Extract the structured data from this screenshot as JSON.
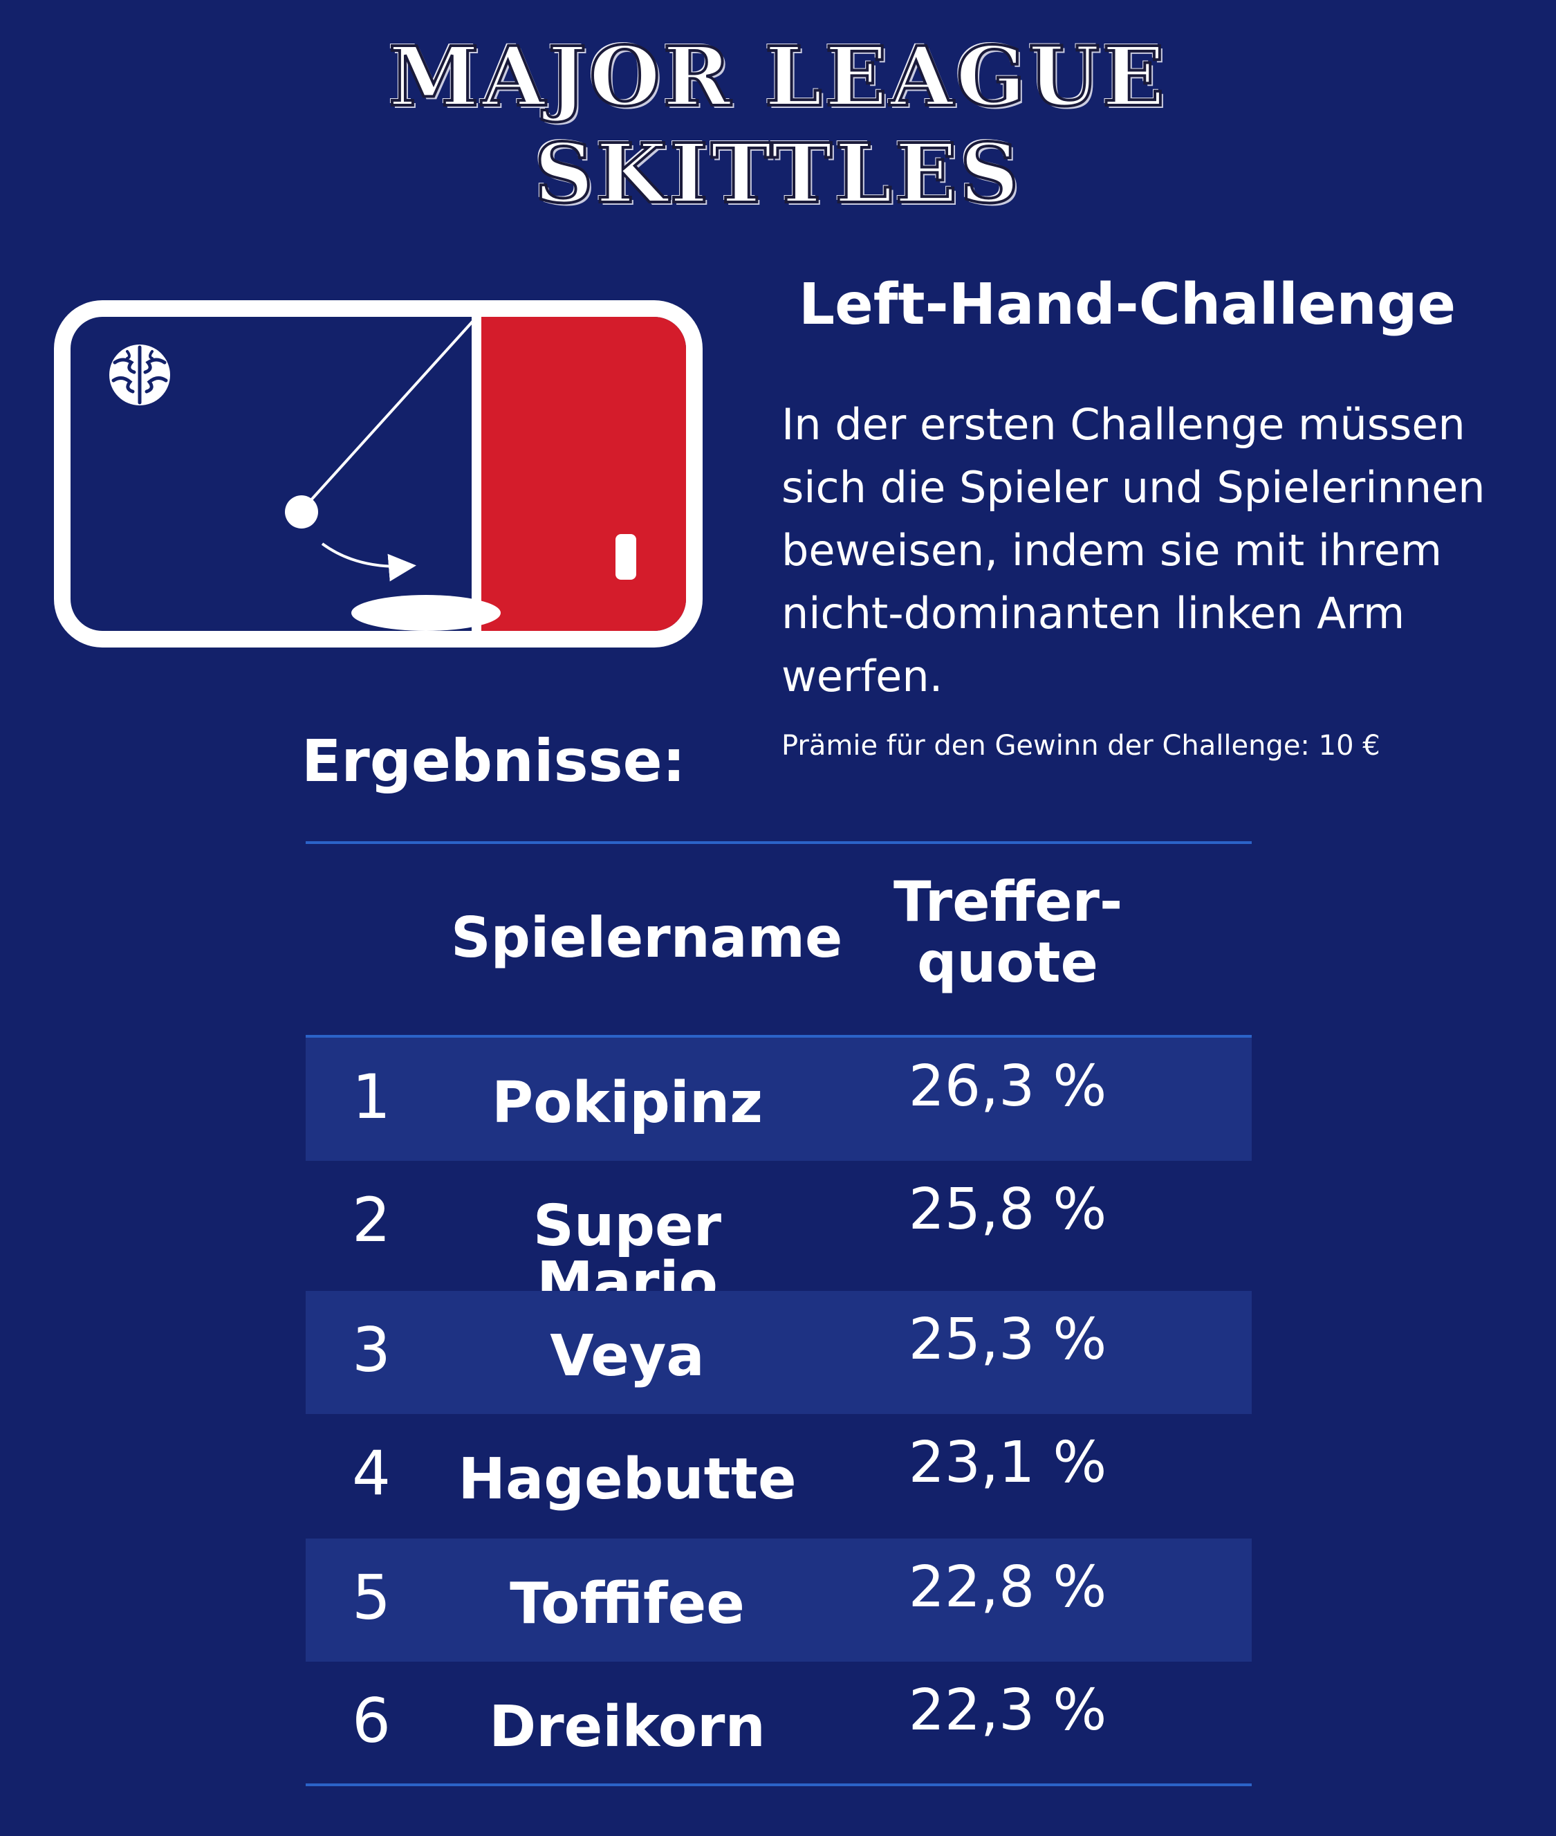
{
  "header": {
    "title_line1": "MAJOR LEAGUE",
    "title_line2": "SKITTLES"
  },
  "logo": {
    "icon": "brain-icon",
    "colors": {
      "left": "#13216a",
      "right": "#d41c2b",
      "border": "#ffffff"
    }
  },
  "challenge": {
    "title": "Left-Hand-Challenge",
    "description_lines": [
      "In der ersten Challenge müssen",
      "sich die Spieler und Spielerinnen",
      "beweisen, indem sie mit ihrem",
      "nicht-dominanten linken Arm",
      "werfen."
    ],
    "prize": "Prämie für den Gewinn der Challenge: 10 €"
  },
  "results": {
    "heading": "Ergebnisse:",
    "columns": {
      "name": "Spielername",
      "rate_line1": "Treffer-",
      "rate_line2": "quote"
    },
    "rows": [
      {
        "rank": "1",
        "name": "Pokipinz",
        "rate": "26,3 %"
      },
      {
        "rank": "2",
        "name": "Super Mario",
        "rate": "25,8 %"
      },
      {
        "rank": "3",
        "name": "Veya",
        "rate": "25,3 %"
      },
      {
        "rank": "4",
        "name": "Hagebutte",
        "rate": "23,1 %"
      },
      {
        "rank": "5",
        "name": "Toffifee",
        "rate": "22,8 %"
      },
      {
        "rank": "6",
        "name": "Dreikorn",
        "rate": "22,3 %"
      }
    ]
  },
  "colors": {
    "background": "#13216a",
    "row_shade": "#1e3283",
    "rule": "#2b63c8",
    "accent_red": "#d41c2b"
  }
}
